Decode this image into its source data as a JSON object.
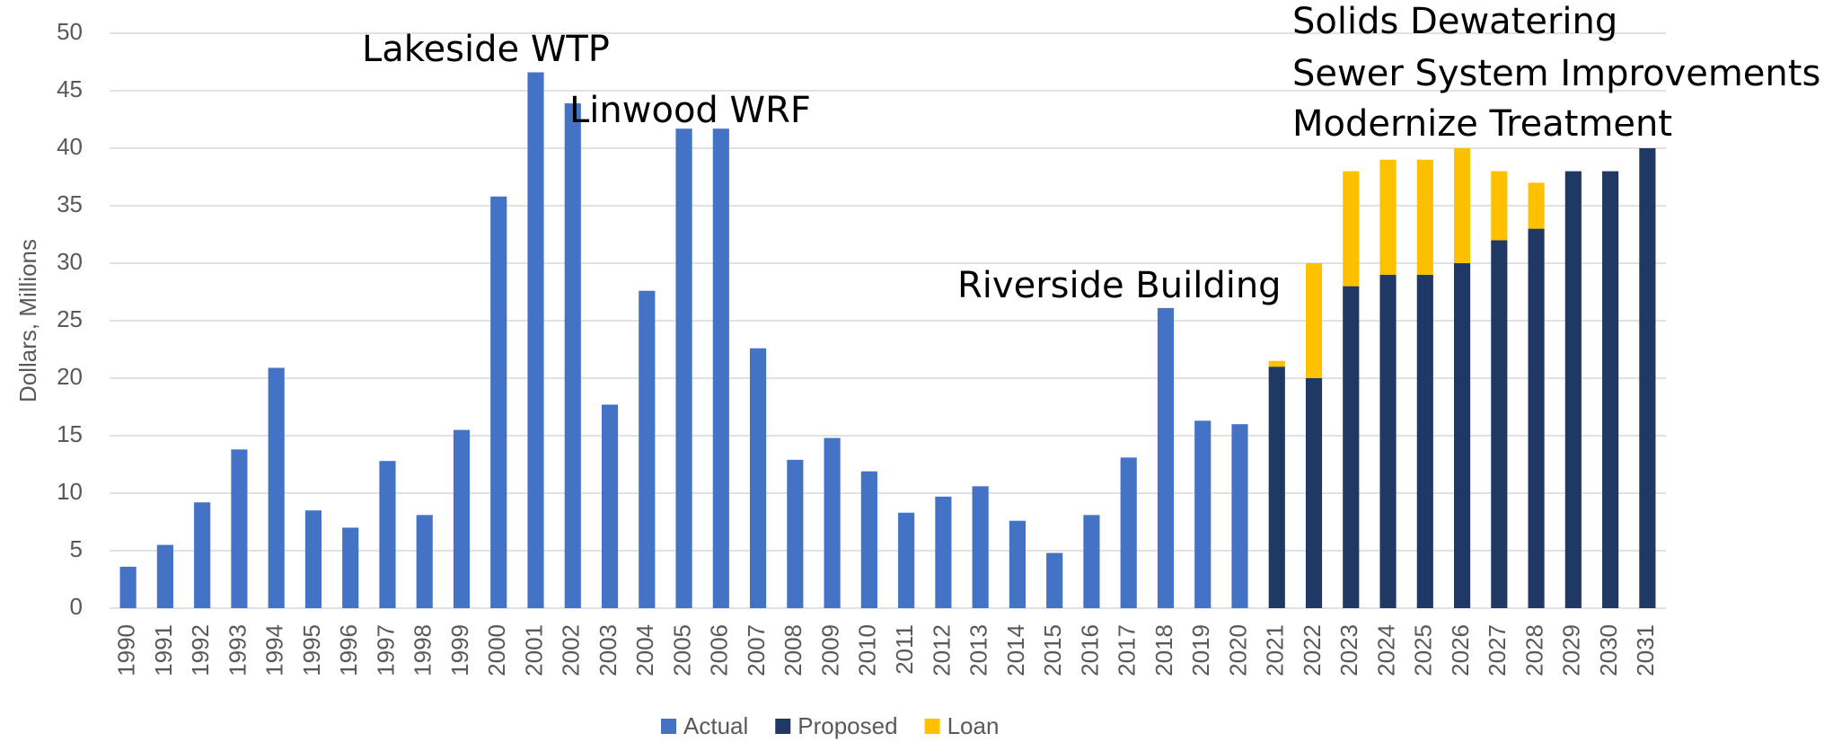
{
  "chart_data": {
    "type": "stacked_bar",
    "y_label": "Dollars, Millions",
    "categories": [
      "1990",
      "1991",
      "1992",
      "1993",
      "1994",
      "1995",
      "1996",
      "1997",
      "1998",
      "1999",
      "2000",
      "2001",
      "2002",
      "2003",
      "2004",
      "2005",
      "2006",
      "2007",
      "2008",
      "2009",
      "2010",
      "2011",
      "2012",
      "2013",
      "2014",
      "2015",
      "2016",
      "2017",
      "2018",
      "2019",
      "2020",
      "2021",
      "2022",
      "2023",
      "2024",
      "2025",
      "2026",
      "2027",
      "2028",
      "2029",
      "2030",
      "2031"
    ],
    "series": [
      {
        "name": "Actual",
        "color": "#4472c4",
        "values": [
          3.6,
          5.5,
          9.2,
          13.8,
          20.9,
          8.5,
          7.0,
          12.8,
          8.1,
          15.5,
          35.8,
          46.6,
          43.9,
          17.7,
          27.6,
          41.7,
          41.7,
          22.6,
          12.9,
          14.8,
          11.9,
          8.3,
          9.7,
          10.6,
          7.6,
          4.8,
          8.1,
          13.1,
          26.1,
          16.3,
          16.0,
          null,
          null,
          null,
          null,
          null,
          null,
          null,
          null,
          null,
          null,
          null
        ]
      },
      {
        "name": "Proposed",
        "color": "#203864",
        "values": [
          null,
          null,
          null,
          null,
          null,
          null,
          null,
          null,
          null,
          null,
          null,
          null,
          null,
          null,
          null,
          null,
          null,
          null,
          null,
          null,
          null,
          null,
          null,
          null,
          null,
          null,
          null,
          null,
          null,
          null,
          null,
          21,
          20,
          28,
          29,
          29,
          30,
          32,
          33,
          38,
          38,
          40
        ]
      },
      {
        "name": "Loan",
        "color": "#ffc000",
        "values": [
          null,
          null,
          null,
          null,
          null,
          null,
          null,
          null,
          null,
          null,
          null,
          null,
          null,
          null,
          null,
          null,
          null,
          null,
          null,
          null,
          null,
          null,
          null,
          null,
          null,
          null,
          null,
          null,
          null,
          null,
          null,
          0.5,
          10,
          10,
          10,
          10,
          10,
          6,
          4,
          null,
          null,
          null
        ]
      }
    ],
    "annotations": [
      "Lakeside WTP",
      "Linwood WRF",
      "Riverside Building",
      "Solids Dewatering",
      "Sewer System Improvements",
      "Modernize Treatment"
    ],
    "ylim": [
      0,
      50
    ],
    "yticks": [
      0,
      5,
      10,
      15,
      20,
      25,
      30,
      35,
      40,
      45,
      50
    ],
    "grid": true,
    "legend": "bottom"
  }
}
